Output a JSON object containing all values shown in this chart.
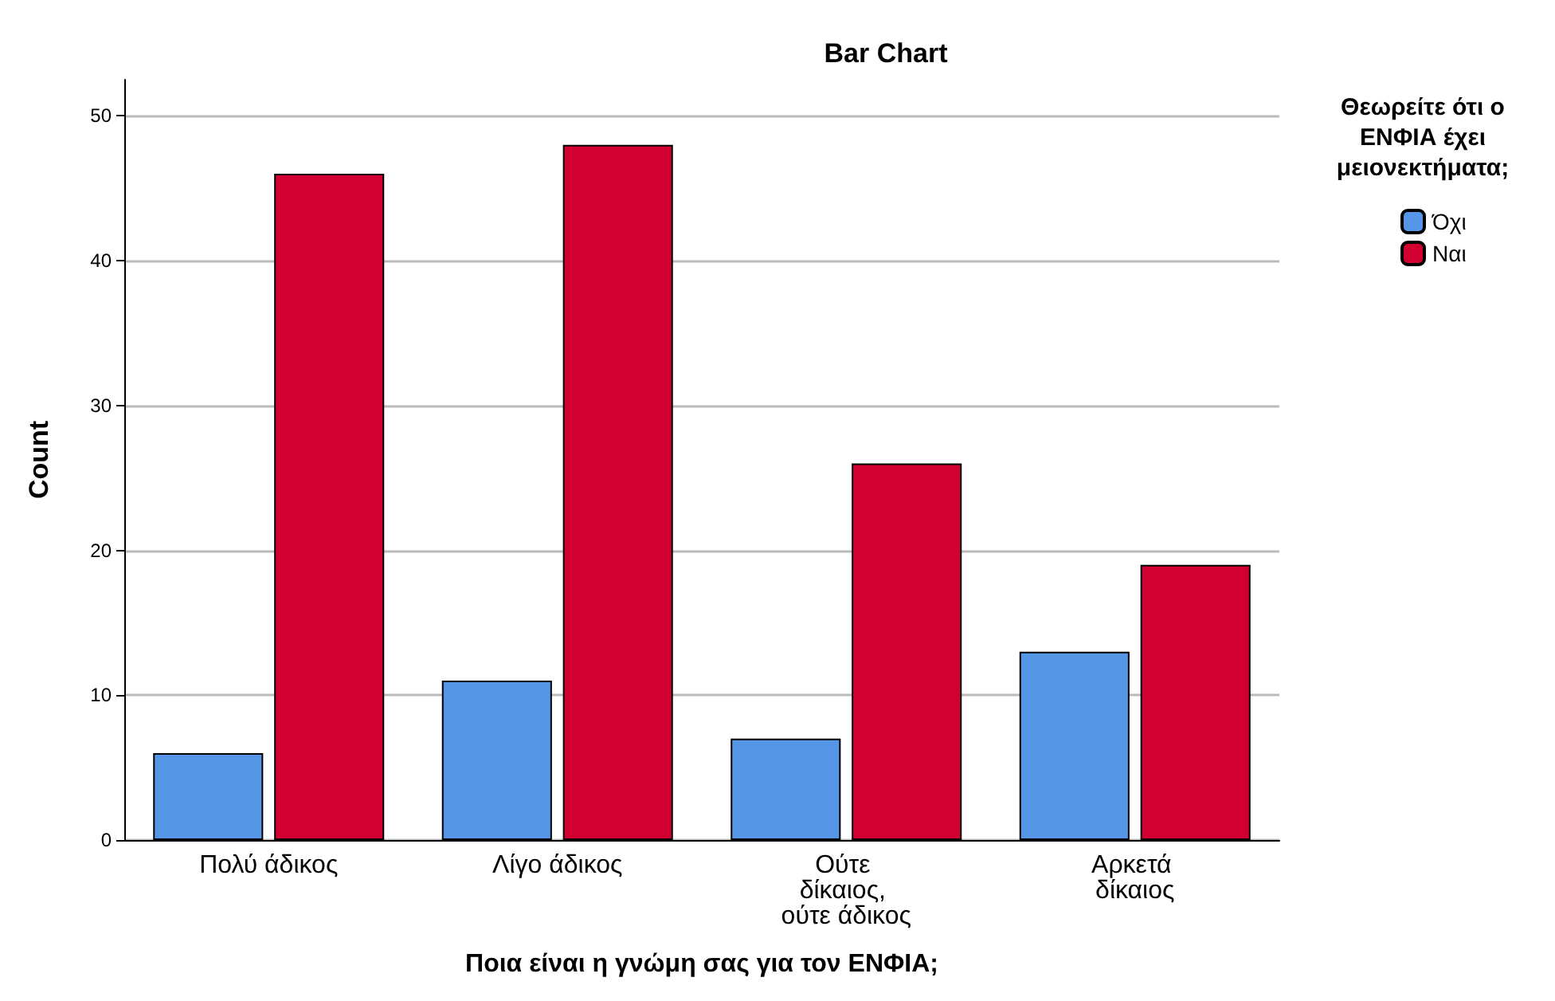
{
  "chart_data": {
    "type": "bar",
    "title": "Bar Chart",
    "xlabel": "Ποια είναι η γνώμη σας για τον ΕΝΦΙΑ;",
    "ylabel": "Count",
    "legend_title": "Θεωρείτε ότι ο ΕΝΦΙΑ έχει μειονεκτήματα;",
    "categories": [
      "Πολύ άδικος",
      "Λίγο άδικος",
      "Ούτε δίκαιος, ούτε άδικος",
      "Αρκετά δίκαιος"
    ],
    "series": [
      {
        "name": "Όχι",
        "color": "#5596e6",
        "values": [
          6,
          11,
          7,
          13
        ]
      },
      {
        "name": "Ναι",
        "color": "#d10031",
        "values": [
          46,
          48,
          26,
          19
        ]
      }
    ],
    "ylim": [
      0,
      52.5
    ],
    "yticks": [
      0,
      10,
      20,
      30,
      40,
      50
    ],
    "grid": "y",
    "legend": "top right"
  }
}
